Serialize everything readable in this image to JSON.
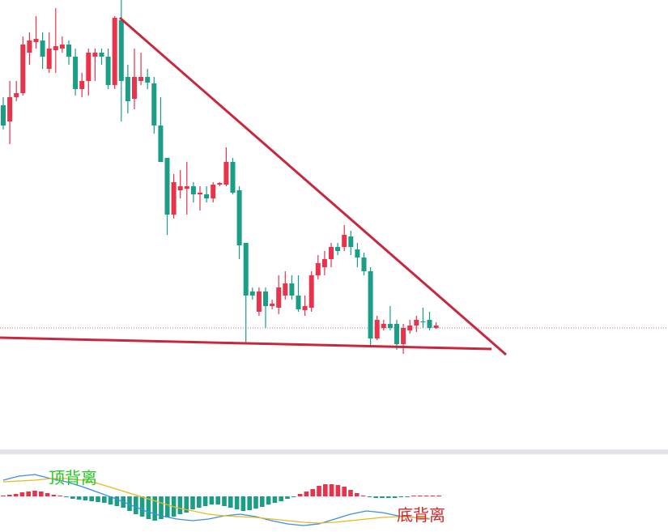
{
  "chart_data": [
    {
      "type": "candlestick",
      "up_color": "#e8334a",
      "down_color": "#1a9e85",
      "ylim": [
        0,
        560
      ],
      "open": [
        430,
        410,
        440,
        445,
        495,
        508,
        510,
        475,
        498,
        500,
        505,
        490,
        450,
        460,
        490,
        495,
        490,
        455,
        535,
        465,
        438,
        460,
        465,
        457,
        405,
        365,
        295,
        325,
        327,
        330,
        320,
        320,
        315,
        332,
        332,
        360,
        325,
        260,
        200,
        175,
        200,
        182,
        180,
        195,
        210,
        195,
        177,
        180,
        220,
        230,
        240,
        255,
        255,
        268,
        252,
        242,
        225,
        142,
        155,
        160,
        160,
        135,
        152,
        158,
        163,
        165,
        155
      ],
      "high": [
        440,
        460,
        460,
        515,
        520,
        540,
        520,
        520,
        550,
        515,
        510,
        500,
        470,
        500,
        500,
        500,
        500,
        540,
        560,
        480,
        500,
        495,
        475,
        465,
        440,
        365,
        345,
        350,
        360,
        335,
        330,
        330,
        335,
        335,
        378,
        365,
        330,
        260,
        205,
        205,
        205,
        190,
        220,
        225,
        220,
        220,
        195,
        225,
        245,
        250,
        260,
        260,
        282,
        275,
        260,
        248,
        230,
        170,
        165,
        182,
        165,
        160,
        165,
        170,
        180,
        175,
        162
      ],
      "low": [
        400,
        382,
        435,
        442,
        480,
        500,
        475,
        470,
        470,
        495,
        480,
        442,
        440,
        442,
        460,
        480,
        450,
        450,
        410,
        420,
        425,
        455,
        450,
        395,
        360,
        270,
        290,
        315,
        295,
        310,
        300,
        310,
        310,
        330,
        330,
        320,
        240,
        137,
        190,
        170,
        155,
        178,
        172,
        190,
        190,
        175,
        170,
        175,
        215,
        220,
        230,
        245,
        250,
        245,
        230,
        220,
        132,
        140,
        152,
        152,
        128,
        123,
        148,
        150,
        155,
        152,
        154
      ],
      "close": [
        405,
        440,
        445,
        505,
        510,
        512,
        490,
        500,
        503,
        505,
        490,
        450,
        460,
        495,
        495,
        490,
        455,
        538,
        460,
        435,
        465,
        465,
        458,
        405,
        360,
        295,
        335,
        330,
        330,
        320,
        322,
        315,
        332,
        334,
        360,
        322,
        257,
        195,
        195,
        200,
        182,
        185,
        205,
        210,
        195,
        178,
        182,
        220,
        235,
        240,
        255,
        250,
        270,
        255,
        242,
        225,
        142,
        165,
        160,
        155,
        135,
        155,
        158,
        165,
        162,
        155,
        158
      ]
    },
    {
      "type": "macd",
      "up_color": "#e8334a",
      "down_color": "#1a9e85",
      "ylim": [
        -44,
        48
      ],
      "histogram": [
        1,
        2,
        3,
        5,
        6,
        7,
        6,
        4,
        2,
        1,
        -1,
        -3,
        -4,
        -5,
        -6,
        -7,
        -8,
        -10,
        -12,
        -14,
        -18,
        -22,
        -25,
        -28,
        -30,
        -28,
        -26,
        -25,
        -22,
        -20,
        -16,
        -14,
        -12,
        -10,
        -10,
        -12,
        -14,
        -16,
        -18,
        -17,
        -15,
        -13,
        -10,
        -8,
        -6,
        -3,
        -1,
        3,
        6,
        9,
        13,
        15,
        15,
        14,
        12,
        8,
        4,
        1,
        -1,
        -2,
        -2,
        -2,
        -2,
        -1,
        -1,
        1,
        1,
        1,
        1,
        1
      ],
      "line_x": [
        0,
        2.5,
        5,
        7.5,
        10,
        12.5,
        15,
        17.5,
        20,
        22.5,
        25,
        27.5,
        30,
        32.5,
        35,
        37.5,
        40,
        42.5,
        45,
        47.5,
        50,
        52.5,
        55,
        57.5,
        60,
        62.5,
        65,
        67.5
      ],
      "lines": [
        {
          "color": "#3a8ee6",
          "values": [
            20,
            25,
            27,
            22,
            18,
            12,
            5,
            -2,
            -10,
            -18,
            -24,
            -28,
            -30,
            -28,
            -24,
            -22,
            -25,
            -30,
            -34,
            -36,
            -34,
            -28,
            -22,
            -18,
            -20,
            -24,
            -26,
            -28
          ]
        },
        {
          "color": "#e8b820",
          "values": [
            18,
            19,
            20,
            22,
            22,
            20,
            16,
            10,
            4,
            -2,
            -8,
            -14,
            -18,
            -22,
            -24,
            -25,
            -26,
            -28,
            -30,
            -32,
            -33,
            -32,
            -30,
            -28,
            -26,
            -25,
            -26,
            -27
          ]
        }
      ],
      "annotations": [
        {
          "text": "顶背离",
          "color": "#22cc22"
        },
        {
          "text": "底背离",
          "color": "#d0282e"
        }
      ]
    }
  ]
}
